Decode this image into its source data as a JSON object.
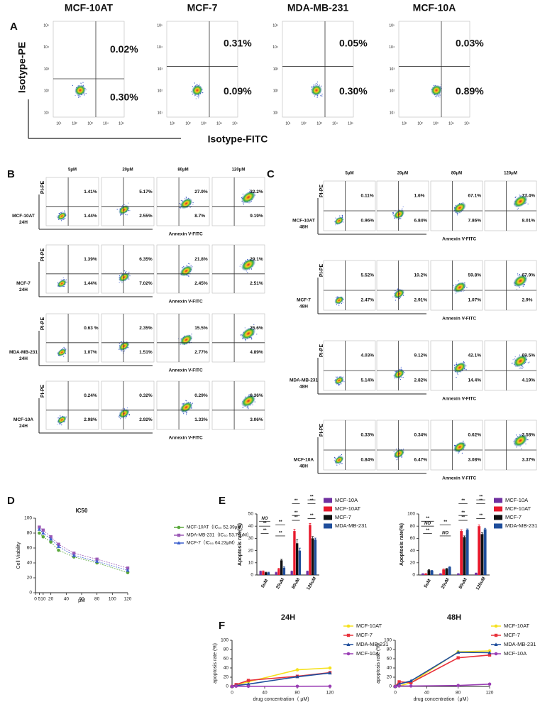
{
  "panel_labels": [
    "A",
    "B",
    "C",
    "D",
    "E",
    "F"
  ],
  "panel_a": {
    "columns": [
      "MCF-10AT",
      "MCF-7",
      "MDA-MB-231",
      "MCF-10A"
    ],
    "y_label": "Isotype-PE",
    "x_label": "Isotype-FITC",
    "ticks": [
      "10¹",
      "10²",
      "10³",
      "10⁴",
      "10⁵"
    ],
    "upper": [
      "0.02%",
      "0.31%",
      "0.05%",
      "0.03%"
    ],
    "lower": [
      "0.30%",
      "0.09%",
      "0.30%",
      "0.89%"
    ]
  },
  "panel_b": {
    "doses": [
      "5μM",
      "20μM",
      "80μM",
      "120μM"
    ],
    "y_label": "PI-PE",
    "x_label": "Annexin V-FITC",
    "rows": [
      {
        "cell": "MCF-10AT",
        "time": "24H",
        "upper": [
          "1.41%",
          "5.17%",
          "27.9%",
          "32.2%"
        ],
        "lower": [
          "1.44%",
          "2.55%",
          "8.7%",
          "9.19%"
        ]
      },
      {
        "cell": "MCF-7",
        "time": "24H",
        "upper": [
          "1.39%",
          "6.35%",
          "21.8%",
          "29.1%"
        ],
        "lower": [
          "1.44%",
          "7.02%",
          "2.45%",
          "2.51%"
        ]
      },
      {
        "cell": "MDA-MB-231",
        "time": "24H",
        "upper": [
          "0.63 %",
          "2.35%",
          "15.5%",
          "25.6%"
        ],
        "lower": [
          "1.07%",
          "1.51%",
          "2.77%",
          "4.89%"
        ]
      },
      {
        "cell": "MCF-10A",
        "time": "24H",
        "upper": [
          "0.24%",
          "0.32%",
          "0.29%",
          "0.36%"
        ],
        "lower": [
          "2.98%",
          "2.92%",
          "1.33%",
          "3.06%"
        ]
      }
    ]
  },
  "panel_c": {
    "doses": [
      "5μM",
      "20μM",
      "80μM",
      "120μM"
    ],
    "y_label": "PI-PE",
    "x_label": "Annexin V-FITC",
    "rows": [
      {
        "cell": "MCF-10AT",
        "time": "48H",
        "upper": [
          "0.11%",
          "1.6%",
          "67.1%",
          "73.4%"
        ],
        "lower": [
          "0.96%",
          "6.84%",
          "7.86%",
          "8.01%"
        ]
      },
      {
        "cell": "MCF-7",
        "time": "48H",
        "upper": [
          "5.52%",
          "10.2%",
          "59.8%",
          "67.9%"
        ],
        "lower": [
          "2.47%",
          "2.91%",
          "1.07%",
          "2.9%"
        ]
      },
      {
        "cell": "MDA-MB-231",
        "time": "48H",
        "upper": [
          "4.03%",
          "9.12%",
          "42.1%",
          "69.5%"
        ],
        "lower": [
          "5.14%",
          "2.82%",
          "14.4%",
          "4.19%"
        ]
      },
      {
        "cell": "MCF-10A",
        "time": "48H",
        "upper": [
          "0.33%",
          "0.34%",
          "0.62%",
          "2.58%"
        ],
        "lower": [
          "0.84%",
          "6.47%",
          "3.08%",
          "3.37%"
        ]
      }
    ]
  },
  "chart_data": [
    {
      "type": "line",
      "title": "IC50",
      "y_label": "Cell Viability",
      "x_label": "μM",
      "x": [
        5,
        10,
        20,
        30,
        50,
        80,
        120
      ],
      "xlim": [
        0,
        120
      ],
      "xticks": [
        0,
        5,
        10,
        20,
        40,
        60,
        80,
        100,
        120
      ],
      "ylim": [
        0,
        100
      ],
      "yticks": [
        0,
        20,
        40,
        60,
        80,
        100
      ],
      "series": [
        {
          "name": "MCF-10AT（IC₅₀ 52.39μM）",
          "color": "#5aa83c",
          "marker": "circle",
          "values": [
            80,
            75,
            68,
            57,
            48,
            40,
            27
          ]
        },
        {
          "name": "MDA-MB-231（IC₅₀ 53.76μM）",
          "color": "#9b59b6",
          "marker": "square",
          "values": [
            88,
            84,
            75,
            65,
            53,
            45,
            33
          ]
        },
        {
          "name": "MCF-7（IC₅₀ 64.23μM）",
          "color": "#3a5fcd",
          "marker": "triangle",
          "values": [
            85,
            80,
            72,
            62,
            50,
            42,
            30
          ]
        }
      ]
    },
    {
      "type": "grouped_bar",
      "title": "24H",
      "y_label": "Apoptosis rate(%)",
      "categories": [
        "5uM",
        "20uM",
        "80uM",
        "120uM"
      ],
      "ylim": [
        0,
        50
      ],
      "yticks": [
        0,
        10,
        20,
        30,
        40,
        50
      ],
      "series": [
        {
          "name": "MCF-10A",
          "color": "#7030a0",
          "values": [
            3,
            2,
            3,
            3
          ],
          "errors": [
            0.3,
            0.3,
            0.3,
            0.3
          ]
        },
        {
          "name": "MCF-10AT",
          "color": "#e8192c",
          "values": [
            3,
            5,
            36,
            41
          ],
          "errors": [
            0.4,
            0.5,
            1.5,
            1.2
          ]
        },
        {
          "name": "MCF-7",
          "color": "#111111",
          "values": [
            2,
            12,
            26,
            30
          ],
          "errors": [
            0.3,
            0.8,
            3,
            1.5
          ]
        },
        {
          "name": "MDA-MB-231",
          "color": "#1f4e9c",
          "values": [
            2,
            6,
            20,
            29
          ],
          "errors": [
            0.3,
            0.6,
            2,
            1.2
          ]
        }
      ],
      "annotations": [
        "**",
        "NO",
        "**",
        "**",
        "**",
        "**",
        "**",
        "**",
        "**",
        "**",
        "**"
      ]
    },
    {
      "type": "grouped_bar",
      "title": "48H",
      "y_label": "Apoptosis rate(%)",
      "categories": [
        "5uM",
        "20uM",
        "80uM",
        "120uM"
      ],
      "ylim": [
        0,
        100
      ],
      "yticks": [
        0,
        20,
        40,
        60,
        80,
        100
      ],
      "series": [
        {
          "name": "MCF-10A",
          "color": "#7030a0",
          "values": [
            2,
            2,
            2,
            3
          ],
          "errors": [
            0.3,
            0.3,
            0.3,
            0.3
          ]
        },
        {
          "name": "MCF-10AT",
          "color": "#e8192c",
          "values": [
            2,
            9,
            72,
            80
          ],
          "errors": [
            0.3,
            0.8,
            2,
            2
          ]
        },
        {
          "name": "MCF-7",
          "color": "#111111",
          "values": [
            8,
            10,
            62,
            67
          ],
          "errors": [
            0.6,
            0.8,
            2,
            2
          ]
        },
        {
          "name": "MDA-MB-231",
          "color": "#1f4e9c",
          "values": [
            7,
            13,
            74,
            75
          ],
          "errors": [
            0.6,
            0.8,
            1.5,
            1.5
          ]
        }
      ],
      "annotations": [
        "NO",
        "**",
        "**",
        "**",
        "NO",
        "**",
        "**",
        "**",
        "**",
        "**",
        "**"
      ]
    },
    {
      "type": "line",
      "y_label": "apoptosis rate (%)",
      "x_label": "drug concentration（ μM)",
      "x": [
        0,
        5,
        20,
        80,
        120
      ],
      "xlim": [
        0,
        120
      ],
      "xticks": [
        0,
        40,
        80,
        120
      ],
      "ylim": [
        0,
        100
      ],
      "yticks": [
        0,
        20,
        40,
        60,
        80,
        100
      ],
      "series": [
        {
          "name": "MCF-10AT",
          "color": "#f5e11c",
          "marker": "circle",
          "values": [
            0,
            3,
            10,
            36,
            40
          ]
        },
        {
          "name": "MCF-7",
          "color": "#e8323c",
          "marker": "square",
          "values": [
            0,
            4,
            13,
            22,
            30
          ]
        },
        {
          "name": "MDA-MB-231",
          "color": "#1f4e9c",
          "marker": "triangle",
          "values": [
            0,
            2,
            5,
            21,
            29
          ]
        },
        {
          "name": "MCF-10A",
          "color": "#9b3fb5",
          "marker": "circle",
          "values": [
            0,
            0.5,
            0.3,
            0.3,
            0.4
          ]
        }
      ]
    },
    {
      "type": "line",
      "y_label": "apoptosis rate (%)",
      "x_label": "drug concentration（μM）",
      "x": [
        0,
        5,
        20,
        80,
        120
      ],
      "xlim": [
        0,
        120
      ],
      "xticks": [
        0,
        40,
        80,
        120
      ],
      "ylim": [
        0,
        100
      ],
      "yticks": [
        0,
        20,
        40,
        60,
        80,
        100
      ],
      "series": [
        {
          "name": "MCF-10AT",
          "color": "#f5e11c",
          "marker": "circle",
          "values": [
            0,
            1,
            8,
            75,
            77
          ]
        },
        {
          "name": "MCF-7",
          "color": "#e8323c",
          "marker": "square",
          "values": [
            0,
            10,
            8,
            62,
            68
          ]
        },
        {
          "name": "MDA-MB-231",
          "color": "#1f4e9c",
          "marker": "triangle",
          "values": [
            0,
            5,
            12,
            74,
            73
          ]
        },
        {
          "name": "MCF-10A",
          "color": "#9b3fb5",
          "marker": "circle",
          "values": [
            0,
            1,
            1,
            2,
            5
          ]
        }
      ]
    }
  ]
}
